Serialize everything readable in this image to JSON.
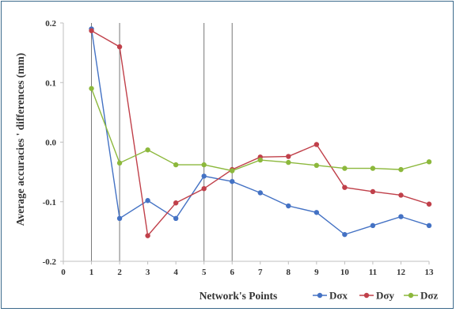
{
  "chart_data": {
    "type": "line",
    "title": "",
    "xlabel": "Network's Points",
    "ylabel": "Average accuracies ' differences (mm)",
    "x_ticks": [
      "0",
      "1",
      "2",
      "3",
      "4",
      "5",
      "6",
      "7",
      "8",
      "9",
      "10",
      "11",
      "12",
      "13"
    ],
    "y_ticks": [
      "0.2",
      "0.1",
      "0.0",
      "-0.1",
      "-0.2"
    ],
    "xlim": [
      0,
      13
    ],
    "ylim": [
      -0.2,
      0.2
    ],
    "x": [
      1,
      2,
      3,
      4,
      5,
      6,
      7,
      8,
      9,
      10,
      11,
      12,
      13
    ],
    "vertical_lines_at": [
      1,
      2,
      5,
      6
    ],
    "grid": false,
    "legend_position": "bottom-right",
    "series": [
      {
        "name": "Dσx",
        "color": "#4472c4",
        "values": [
          0.19,
          -0.128,
          -0.098,
          -0.128,
          -0.057,
          -0.066,
          -0.085,
          -0.107,
          -0.118,
          -0.155,
          -0.14,
          -0.125,
          -0.14
        ]
      },
      {
        "name": "Dσy",
        "color": "#c0404a",
        "values": [
          0.187,
          0.16,
          -0.157,
          -0.102,
          -0.078,
          -0.046,
          -0.025,
          -0.024,
          -0.004,
          -0.076,
          -0.083,
          -0.089,
          -0.104
        ]
      },
      {
        "name": "Dσz",
        "color": "#8cb83c",
        "values": [
          0.09,
          -0.035,
          -0.013,
          -0.038,
          -0.038,
          -0.048,
          -0.03,
          -0.034,
          -0.039,
          -0.044,
          -0.044,
          -0.046,
          -0.033
        ]
      }
    ]
  }
}
